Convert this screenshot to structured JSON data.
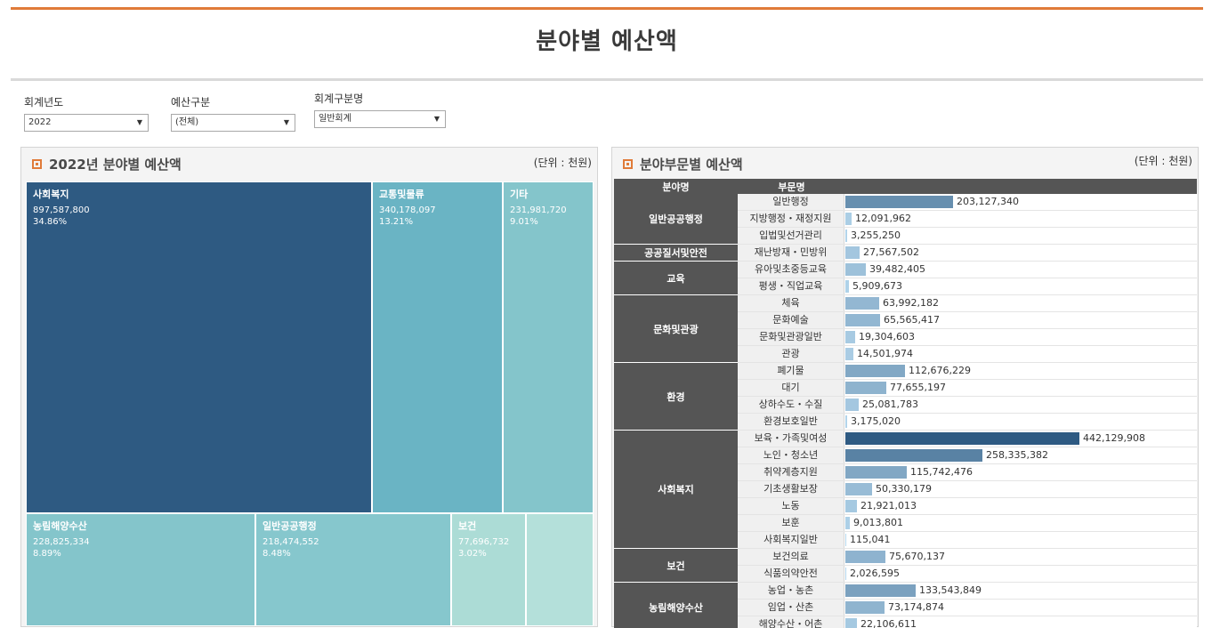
{
  "title": "분야별 예산액",
  "filters": [
    {
      "label": "회계년도",
      "value": "2022"
    },
    {
      "label": "예산구분",
      "value": "(전체)"
    },
    {
      "label": "회계구분명",
      "value": "일반회계"
    }
  ],
  "left_panel": {
    "title": "2022년 분야별 예산액",
    "unit": "(단위 : 천원)"
  },
  "right_panel": {
    "title": "분야부문별 예산액",
    "unit": "(단위 : 천원)"
  },
  "colors": {
    "accent": "#e07b39",
    "header_bg": "#555555"
  },
  "chart_data": [
    {
      "type": "treemap",
      "title": "2022년 분야별 예산액",
      "unit": "천원",
      "items": [
        {
          "name": "사회복지",
          "value_label": "897,587,800",
          "share_label": "34.86%",
          "value": 897587800,
          "share": 34.86,
          "color": "#2e5a82"
        },
        {
          "name": "교통및물류",
          "value_label": "340,178,097",
          "share_label": "13.21%",
          "value": 340178097,
          "share": 13.21,
          "color": "#6ab4c4"
        },
        {
          "name": "기타",
          "value_label": "231,981,720",
          "share_label": "9.01%",
          "value": 231981720,
          "share": 9.01,
          "color": "#84c5cb"
        },
        {
          "name": "농림해양수산",
          "value_label": "228,825,334",
          "share_label": "8.89%",
          "value": 228825334,
          "share": 8.89,
          "color": "#84c5cb"
        },
        {
          "name": "일반공공행정",
          "value_label": "218,474,552",
          "share_label": "8.48%",
          "value": 218474552,
          "share": 8.48,
          "color": "#86c7cd"
        },
        {
          "name": "보건",
          "value_label": "77,696,732",
          "share_label": "3.02%",
          "value": 77696732,
          "share": 3.02,
          "color": "#acdcd6"
        },
        {
          "name": "",
          "value_label": "",
          "share_label": "",
          "value": null,
          "share": null,
          "color": "#b4e0da"
        }
      ]
    },
    {
      "type": "bar",
      "title": "분야부문별 예산액",
      "unit": "천원",
      "columns": [
        "분야명",
        "부문명"
      ],
      "groups": [
        {
          "name": "일반공공행정",
          "rows": [
            {
              "sub": "일반행정",
              "value": 203127340,
              "label": "203,127,340"
            },
            {
              "sub": "지방행정・재정지원",
              "value": 12091962,
              "label": "12,091,962"
            },
            {
              "sub": "입법및선거관리",
              "value": 3255250,
              "label": "3,255,250"
            }
          ]
        },
        {
          "name": "공공질서및안전",
          "rows": [
            {
              "sub": "재난방재・민방위",
              "value": 27567502,
              "label": "27,567,502"
            }
          ]
        },
        {
          "name": "교육",
          "rows": [
            {
              "sub": "유아및초중등교육",
              "value": 39482405,
              "label": "39,482,405"
            },
            {
              "sub": "평생・직업교육",
              "value": 5909673,
              "label": "5,909,673"
            }
          ]
        },
        {
          "name": "문화및관광",
          "rows": [
            {
              "sub": "체육",
              "value": 63992182,
              "label": "63,992,182"
            },
            {
              "sub": "문화예술",
              "value": 65565417,
              "label": "65,565,417"
            },
            {
              "sub": "문화및관광일반",
              "value": 19304603,
              "label": "19,304,603"
            },
            {
              "sub": "관광",
              "value": 14501974,
              "label": "14,501,974"
            }
          ]
        },
        {
          "name": "환경",
          "rows": [
            {
              "sub": "폐기물",
              "value": 112676229,
              "label": "112,676,229"
            },
            {
              "sub": "대기",
              "value": 77655197,
              "label": "77,655,197"
            },
            {
              "sub": "상하수도・수질",
              "value": 25081783,
              "label": "25,081,783"
            },
            {
              "sub": "환경보호일반",
              "value": 3175020,
              "label": "3,175,020"
            }
          ]
        },
        {
          "name": "사회복지",
          "rows": [
            {
              "sub": "보육・가족및여성",
              "value": 442129908,
              "label": "442,129,908"
            },
            {
              "sub": "노인・청소년",
              "value": 258335382,
              "label": "258,335,382"
            },
            {
              "sub": "취약계층지원",
              "value": 115742476,
              "label": "115,742,476"
            },
            {
              "sub": "기초생활보장",
              "value": 50330179,
              "label": "50,330,179"
            },
            {
              "sub": "노동",
              "value": 21921013,
              "label": "21,921,013"
            },
            {
              "sub": "보훈",
              "value": 9013801,
              "label": "9,013,801"
            },
            {
              "sub": "사회복지일반",
              "value": 115041,
              "label": "115,041"
            }
          ]
        },
        {
          "name": "보건",
          "rows": [
            {
              "sub": "보건의료",
              "value": 75670137,
              "label": "75,670,137"
            },
            {
              "sub": "식품의약안전",
              "value": 2026595,
              "label": "2,026,595"
            }
          ]
        },
        {
          "name": "농림해양수산",
          "rows": [
            {
              "sub": "농업・농촌",
              "value": 133543849,
              "label": "133,543,849"
            },
            {
              "sub": "임업・산촌",
              "value": 73174874,
              "label": "73,174,874"
            },
            {
              "sub": "해양수산・어촌",
              "value": 22106611,
              "label": "22,106,611"
            }
          ]
        }
      ]
    }
  ]
}
